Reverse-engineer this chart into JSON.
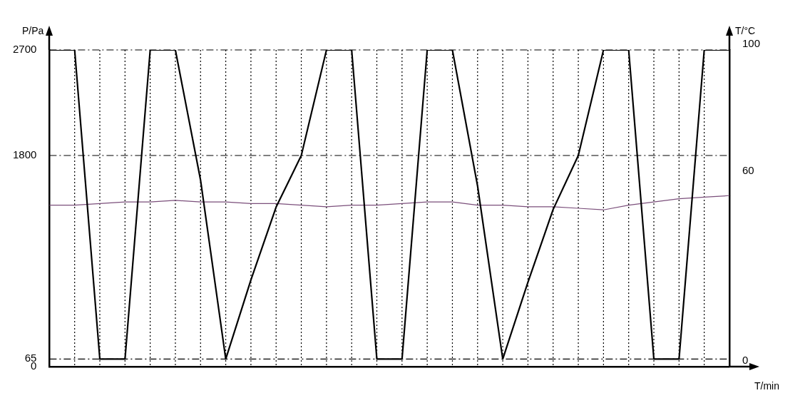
{
  "chart_data": {
    "type": "line",
    "xlabel": "T/min",
    "ylabel": "P/Pa",
    "y2label": "T/°C",
    "categories": [
      null,
      null,
      null,
      null,
      null,
      null,
      null,
      null,
      null,
      null,
      null,
      null,
      null,
      null,
      null,
      null,
      null,
      null,
      null,
      null,
      null,
      null,
      null,
      null,
      null,
      null,
      null,
      null
    ],
    "ylim": [
      0,
      2700
    ],
    "yticks": [
      0,
      65,
      1800,
      2700
    ],
    "y2lim": [
      0,
      100
    ],
    "y2ticks": [
      0,
      60,
      100
    ],
    "tick_labels": "y",
    "grid": true,
    "marker": "none",
    "line_style": "solid",
    "series": [
      {
        "color": "#000000",
        "values": [
          2700,
          2700,
          65,
          65,
          2700,
          2700,
          1590,
          65,
          740,
          1360,
          1800,
          2700,
          2700,
          65,
          65,
          2700,
          2700,
          1540,
          65,
          720,
          1340,
          1800,
          2700,
          2700,
          65,
          65,
          2700,
          2700
        ]
      },
      {
        "color": "#7b4f7b",
        "axis": "y2",
        "values": [
          51,
          51,
          51.5,
          52,
          52,
          52.5,
          52,
          52,
          51.5,
          51.5,
          51,
          50.5,
          51,
          51,
          51.5,
          52,
          52,
          51,
          51,
          50.5,
          50.5,
          50,
          49.5,
          51,
          52,
          53,
          53.5,
          54
        ]
      }
    ]
  }
}
